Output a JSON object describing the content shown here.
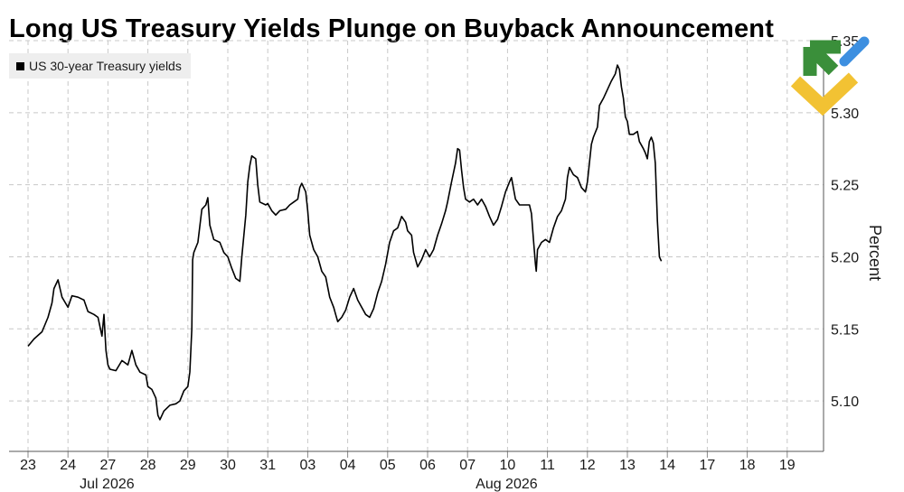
{
  "title": "Long US Treasury Yields Plunge on Buyback Announcement",
  "chart_data": {
    "type": "line",
    "title": "Long US Treasury Yields Plunge on Buyback Announcement",
    "xlabel": "",
    "ylabel": "Percent",
    "ylim": [
      5.065,
      5.35
    ],
    "yticks": [
      5.1,
      5.15,
      5.2,
      5.25,
      5.3,
      5.35
    ],
    "ytick_labels": [
      "5.10",
      "5.15",
      "5.20",
      "5.25",
      "5.30",
      "5.35"
    ],
    "grid": "vertical and horizontal dashed",
    "legend_position": "top-left",
    "x_tick_labels": [
      "23",
      "24",
      "27",
      "28",
      "29",
      "30",
      "31",
      "03",
      "04",
      "05",
      "06",
      "07",
      "10",
      "11",
      "12",
      "13",
      "14",
      "17",
      "18",
      "19"
    ],
    "month_labels": [
      {
        "label": "Jul 2026",
        "at_tick": 2
      },
      {
        "label": "Aug 2026",
        "at_tick": 12
      }
    ],
    "series": [
      {
        "name": "US 30-year Treasury yields",
        "color": "#000000",
        "points": [
          [
            0.0,
            5.138
          ],
          [
            0.15,
            5.143
          ],
          [
            0.35,
            5.148
          ],
          [
            0.5,
            5.158
          ],
          [
            0.6,
            5.168
          ],
          [
            0.65,
            5.178
          ],
          [
            0.75,
            5.184
          ],
          [
            0.85,
            5.172
          ],
          [
            1.0,
            5.165
          ],
          [
            1.1,
            5.173
          ],
          [
            1.25,
            5.172
          ],
          [
            1.4,
            5.17
          ],
          [
            1.5,
            5.162
          ],
          [
            1.65,
            5.16
          ],
          [
            1.75,
            5.158
          ],
          [
            1.85,
            5.145
          ],
          [
            1.9,
            5.16
          ],
          [
            1.95,
            5.135
          ],
          [
            2.0,
            5.125
          ],
          [
            2.05,
            5.122
          ],
          [
            2.2,
            5.121
          ],
          [
            2.35,
            5.128
          ],
          [
            2.5,
            5.125
          ],
          [
            2.6,
            5.135
          ],
          [
            2.7,
            5.125
          ],
          [
            2.8,
            5.12
          ],
          [
            2.95,
            5.118
          ],
          [
            3.0,
            5.11
          ],
          [
            3.1,
            5.108
          ],
          [
            3.2,
            5.102
          ],
          [
            3.25,
            5.09
          ],
          [
            3.3,
            5.087
          ],
          [
            3.4,
            5.093
          ],
          [
            3.55,
            5.097
          ],
          [
            3.7,
            5.098
          ],
          [
            3.8,
            5.1
          ],
          [
            3.9,
            5.107
          ],
          [
            4.0,
            5.11
          ],
          [
            4.05,
            5.12
          ],
          [
            4.1,
            5.15
          ],
          [
            4.12,
            5.198
          ],
          [
            4.15,
            5.203
          ],
          [
            4.25,
            5.21
          ],
          [
            4.35,
            5.233
          ],
          [
            4.45,
            5.236
          ],
          [
            4.5,
            5.241
          ],
          [
            4.55,
            5.222
          ],
          [
            4.65,
            5.212
          ],
          [
            4.8,
            5.21
          ],
          [
            4.9,
            5.203
          ],
          [
            5.0,
            5.2
          ],
          [
            5.1,
            5.192
          ],
          [
            5.2,
            5.185
          ],
          [
            5.3,
            5.183
          ],
          [
            5.35,
            5.2
          ],
          [
            5.45,
            5.229
          ],
          [
            5.5,
            5.252
          ],
          [
            5.55,
            5.263
          ],
          [
            5.6,
            5.27
          ],
          [
            5.7,
            5.268
          ],
          [
            5.75,
            5.25
          ],
          [
            5.8,
            5.238
          ],
          [
            5.95,
            5.236
          ],
          [
            6.0,
            5.237
          ],
          [
            6.1,
            5.232
          ],
          [
            6.2,
            5.229
          ],
          [
            6.3,
            5.232
          ],
          [
            6.45,
            5.233
          ],
          [
            6.55,
            5.236
          ],
          [
            6.65,
            5.238
          ],
          [
            6.75,
            5.24
          ],
          [
            6.8,
            5.248
          ],
          [
            6.85,
            5.251
          ],
          [
            6.95,
            5.245
          ],
          [
            7.0,
            5.232
          ],
          [
            7.05,
            5.215
          ],
          [
            7.15,
            5.205
          ],
          [
            7.25,
            5.2
          ],
          [
            7.35,
            5.19
          ],
          [
            7.45,
            5.186
          ],
          [
            7.55,
            5.172
          ],
          [
            7.65,
            5.165
          ],
          [
            7.7,
            5.16
          ],
          [
            7.75,
            5.155
          ],
          [
            7.85,
            5.158
          ],
          [
            7.95,
            5.163
          ],
          [
            8.05,
            5.172
          ],
          [
            8.15,
            5.178
          ],
          [
            8.25,
            5.17
          ],
          [
            8.35,
            5.165
          ],
          [
            8.45,
            5.16
          ],
          [
            8.55,
            5.158
          ],
          [
            8.65,
            5.164
          ],
          [
            8.75,
            5.175
          ],
          [
            8.85,
            5.183
          ],
          [
            8.95,
            5.195
          ],
          [
            9.05,
            5.21
          ],
          [
            9.15,
            5.218
          ],
          [
            9.25,
            5.22
          ],
          [
            9.35,
            5.228
          ],
          [
            9.45,
            5.224
          ],
          [
            9.5,
            5.218
          ],
          [
            9.6,
            5.215
          ],
          [
            9.65,
            5.203
          ],
          [
            9.75,
            5.193
          ],
          [
            9.85,
            5.198
          ],
          [
            9.95,
            5.205
          ],
          [
            10.05,
            5.2
          ],
          [
            10.15,
            5.205
          ],
          [
            10.25,
            5.215
          ],
          [
            10.35,
            5.223
          ],
          [
            10.45,
            5.232
          ],
          [
            10.5,
            5.238
          ],
          [
            10.6,
            5.252
          ],
          [
            10.7,
            5.265
          ],
          [
            10.75,
            5.275
          ],
          [
            10.8,
            5.274
          ],
          [
            10.85,
            5.26
          ],
          [
            10.9,
            5.248
          ],
          [
            10.95,
            5.24
          ],
          [
            11.05,
            5.238
          ],
          [
            11.15,
            5.24
          ],
          [
            11.25,
            5.236
          ],
          [
            11.35,
            5.24
          ],
          [
            11.45,
            5.235
          ],
          [
            11.55,
            5.228
          ],
          [
            11.65,
            5.222
          ],
          [
            11.75,
            5.226
          ],
          [
            11.85,
            5.235
          ],
          [
            11.95,
            5.245
          ],
          [
            12.05,
            5.252
          ],
          [
            12.1,
            5.255
          ],
          [
            12.2,
            5.24
          ],
          [
            12.3,
            5.236
          ],
          [
            12.45,
            5.236
          ],
          [
            12.55,
            5.236
          ],
          [
            12.6,
            5.23
          ],
          [
            12.65,
            5.212
          ],
          [
            12.7,
            5.195
          ],
          [
            12.72,
            5.19
          ],
          [
            12.75,
            5.205
          ],
          [
            12.85,
            5.21
          ],
          [
            12.95,
            5.212
          ],
          [
            13.05,
            5.21
          ],
          [
            13.15,
            5.22
          ],
          [
            13.25,
            5.228
          ],
          [
            13.35,
            5.232
          ],
          [
            13.45,
            5.24
          ],
          [
            13.5,
            5.255
          ],
          [
            13.55,
            5.262
          ],
          [
            13.65,
            5.257
          ],
          [
            13.75,
            5.255
          ],
          [
            13.85,
            5.248
          ],
          [
            13.95,
            5.245
          ],
          [
            14.0,
            5.252
          ],
          [
            14.05,
            5.265
          ],
          [
            14.1,
            5.278
          ],
          [
            14.15,
            5.283
          ],
          [
            14.25,
            5.29
          ],
          [
            14.3,
            5.305
          ],
          [
            14.4,
            5.31
          ],
          [
            14.5,
            5.316
          ],
          [
            14.6,
            5.322
          ],
          [
            14.7,
            5.327
          ],
          [
            14.75,
            5.333
          ],
          [
            14.8,
            5.33
          ],
          [
            14.85,
            5.318
          ],
          [
            14.9,
            5.31
          ],
          [
            14.95,
            5.297
          ],
          [
            15.0,
            5.294
          ],
          [
            15.05,
            5.285
          ],
          [
            15.15,
            5.285
          ],
          [
            15.25,
            5.287
          ],
          [
            15.3,
            5.28
          ],
          [
            15.4,
            5.275
          ],
          [
            15.45,
            5.272
          ],
          [
            15.5,
            5.268
          ],
          [
            15.55,
            5.28
          ],
          [
            15.6,
            5.283
          ],
          [
            15.65,
            5.279
          ],
          [
            15.7,
            5.265
          ],
          [
            15.75,
            5.225
          ],
          [
            15.8,
            5.2
          ],
          [
            15.85,
            5.197
          ]
        ]
      }
    ]
  },
  "logo": {
    "colors": [
      "#3a8f3a",
      "#f2c233",
      "#3d8fe0"
    ]
  }
}
